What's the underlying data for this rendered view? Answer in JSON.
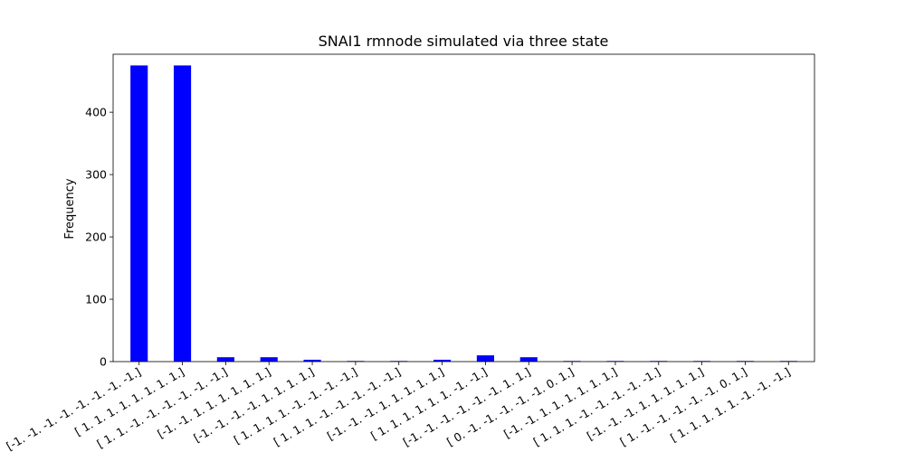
{
  "chart_data": {
    "type": "bar",
    "title": "SNAI1 rmnode simulated via three state",
    "xlabel": "",
    "ylabel": "Frequency",
    "ylim": [
      0,
      493
    ],
    "yticks": [
      0,
      100,
      200,
      300,
      400
    ],
    "bar_color": "#0000ff",
    "grid": false,
    "legend": "none",
    "categories": [
      "[-1. -1. -1. -1. -1. -1. -1. -1.]",
      "[ 1.  1.  1.  1.  1.  1.  1.  1.]",
      "[ 1.  1. -1. -1. -1. -1. -1. -1.]",
      "[-1. -1.  1.  1.  1.  1.  1.  1.]",
      "[-1. -1. -1. -1.  1.  1.  1.  1.]",
      "[ 1.  1.  1.  1. -1. -1. -1. -1.]",
      "[ 1.  1.  1. -1. -1. -1. -1. -1.]",
      "[-1. -1. -1.  1.  1.  1.  1.  1.]",
      "[ 1.  1.  1.  1.  1.  1. -1. -1.]",
      "[-1. -1. -1. -1. -1. -1.  1.  1.]",
      "[ 0. -1. -1. -1. -1. -1.  0.  1.]",
      "[-1. -1.  1.  1.  1.  1.  1.  1.]",
      "[ 1.  1.  1. -1. -1. -1. -1. -1.]",
      "[-1. -1. -1.  1.  1.  1.  1.  1.]",
      "[ 1. -1. -1. -1. -1. -1.  0.  1.]",
      "[ 1.  1.  1.  1.  1. -1. -1. -1.]"
    ],
    "values": [
      475,
      475,
      7,
      7,
      3,
      1,
      1,
      3,
      10,
      7,
      1,
      1,
      1,
      1,
      1,
      1
    ]
  }
}
